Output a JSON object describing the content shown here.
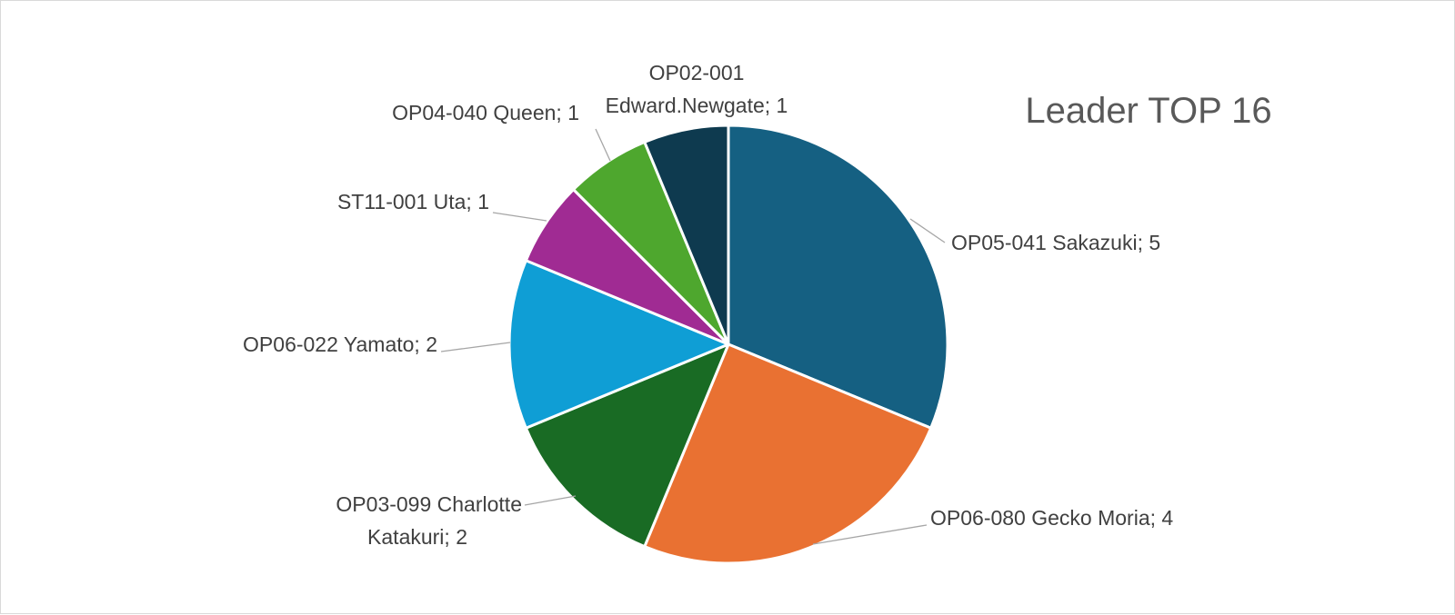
{
  "chart_data": {
    "type": "pie",
    "title": "Leader TOP 16",
    "legend": "none",
    "slices": [
      {
        "label_lines": [
          "OP05-041  Sakazuki; 5"
        ],
        "value": 5,
        "color": "#156082"
      },
      {
        "label_lines": [
          "OP06-080  Gecko Moria; 4"
        ],
        "value": 4,
        "color": "#E97132"
      },
      {
        "label_lines": [
          "OP03-099  Charlotte",
          "Katakuri; 2"
        ],
        "value": 2,
        "color": "#196B24"
      },
      {
        "label_lines": [
          "OP06-022  Yamato; 2"
        ],
        "value": 2,
        "color": "#0F9ED5"
      },
      {
        "label_lines": [
          "ST11-001  Uta; 1"
        ],
        "value": 1,
        "color": "#A02B93"
      },
      {
        "label_lines": [
          "OP04-040  Queen; 1"
        ],
        "value": 1,
        "color": "#4EA72E"
      },
      {
        "label_lines": [
          "OP02-001",
          "Edward.Newgate; 1"
        ],
        "value": 1,
        "color": "#0E3A4F"
      }
    ]
  }
}
